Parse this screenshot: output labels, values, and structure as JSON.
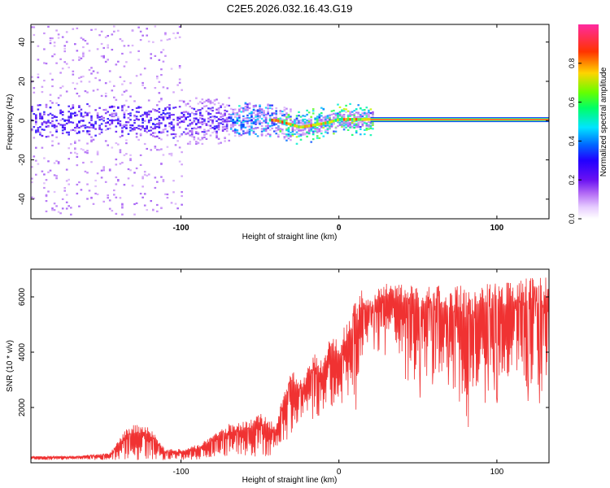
{
  "page": {
    "title": "C2E5.2026.032.16.43.G19"
  },
  "chart_data": [
    {
      "type": "heatmap",
      "name": "spectrogram",
      "xlabel": "Height of straight line (km)",
      "ylabel": "Frequency (Hz)",
      "xlim": [
        -195,
        133
      ],
      "ylim": [
        -50,
        49
      ],
      "xticks": [
        -100,
        0,
        100
      ],
      "xtick_labels": [
        "-100",
        "0",
        "100"
      ],
      "yticks": [
        -40,
        -20,
        0,
        20,
        40
      ],
      "ytick_labels": [
        "-40",
        "-20",
        "0",
        "20",
        "40"
      ],
      "grid": false,
      "colormap": [
        "#ffffff",
        "#c58af7",
        "#7a1ff0",
        "#2200ff",
        "#0066ff",
        "#00e5ff",
        "#00ff66",
        "#b6ff00",
        "#ffd400",
        "#ff3300",
        "#ff2aa0"
      ],
      "colorbar": {
        "label": "Normalized spectral amplitude",
        "range": [
          0,
          1
        ],
        "ticks": [
          0.0,
          0.2,
          0.4,
          0.6,
          0.8
        ],
        "tick_labels": [
          "0.0",
          "0.2",
          "0.4",
          "0.6",
          "0.8"
        ]
      },
      "tone": {
        "x_start": 20,
        "x_end": 133,
        "frequency": 0.5,
        "amplitude": 0.95,
        "description_points": [
          {
            "x": -60,
            "f": 1.0
          },
          {
            "x": -40,
            "f": 0.0
          },
          {
            "x": -25,
            "f": -3.5
          },
          {
            "x": -10,
            "f": -1.5
          },
          {
            "x": 0,
            "f": 0.5
          },
          {
            "x": 20,
            "f": 0.5
          }
        ]
      }
    },
    {
      "type": "line",
      "name": "snr",
      "xlabel": "Height of straight line (km)",
      "ylabel": "SNR (10 * v/v)",
      "xlim": [
        -195,
        133
      ],
      "ylim": [
        0,
        7000
      ],
      "xticks": [
        -100,
        0,
        100
      ],
      "xtick_labels": [
        "-100",
        "0",
        "100"
      ],
      "yticks": [
        2000,
        4000,
        6000
      ],
      "ytick_labels": [
        "2000",
        "4000",
        "6000"
      ],
      "grid": false,
      "color": "#f03232",
      "series": [
        {
          "name": "SNR",
          "envelope_x": [
            -195,
            -170,
            -145,
            -135,
            -128,
            -120,
            -110,
            -100,
            -90,
            -80,
            -70,
            -60,
            -50,
            -40,
            -35,
            -30,
            -25,
            -20,
            -15,
            -10,
            -5,
            0,
            5,
            10,
            15,
            20,
            25,
            30,
            40,
            50,
            60,
            70,
            80,
            90,
            100,
            110,
            120,
            133
          ],
          "envelope_top": [
            250,
            250,
            350,
            1200,
            1450,
            1300,
            500,
            500,
            650,
            1000,
            1400,
            1500,
            1800,
            1400,
            2500,
            3600,
            3000,
            3400,
            4000,
            3600,
            4800,
            4500,
            5100,
            5800,
            6300,
            6000,
            6300,
            6500,
            6450,
            6400,
            6450,
            6350,
            6450,
            6450,
            6500,
            6600,
            6700,
            6700
          ],
          "envelope_bottom": [
            100,
            100,
            100,
            100,
            100,
            100,
            100,
            100,
            100,
            150,
            200,
            200,
            200,
            300,
            600,
            1000,
            1300,
            1500,
            1600,
            1800,
            2000,
            2000,
            2200,
            1500,
            4000,
            4400,
            4500,
            4700,
            3800,
            3000,
            3200,
            3000,
            1500,
            3000,
            2800,
            3200,
            2700,
            2700
          ]
        }
      ]
    }
  ]
}
